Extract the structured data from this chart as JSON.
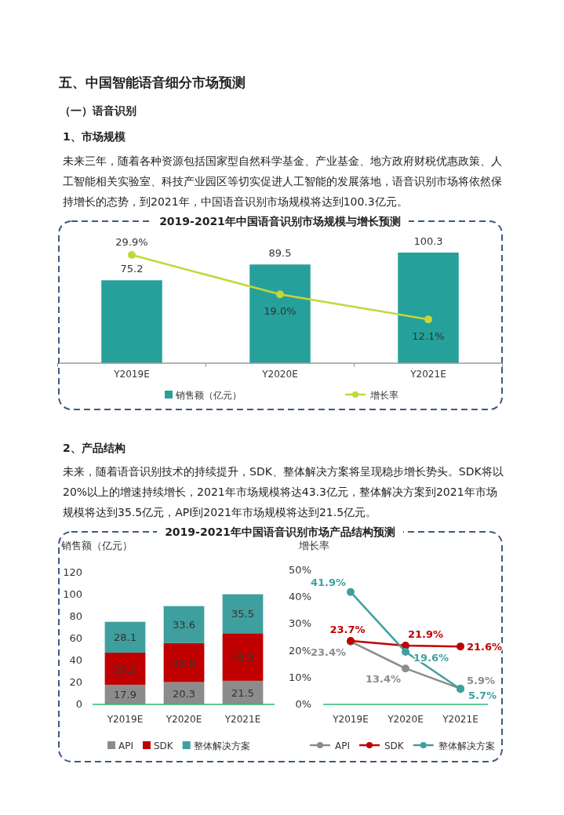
{
  "chart_data": [
    {
      "type": "bar",
      "title": "2019-2021年中国语音识别市场规模与增长预测",
      "annotations": [
        "五、中国智能语音细分市场预测",
        "（一）语音识别",
        "1、市场规模",
        "未来三年，随着各种资源包括国家型自然科学基金、产业基金、地方政府财税优惠政策、人工智能相关实验室、科技产业园区等切实促进人工智能的发展落地，语音识别市场将依然保持增长的态势，到2021年，中国语音识别市场规模将达到100.3亿元。"
      ],
      "categories": [
        "Y2019E",
        "Y2020E",
        "Y2021E"
      ],
      "series": [
        {
          "name": "销售额（亿元）",
          "type": "bar",
          "color": "#26a09a",
          "values": [
            75.2,
            89.5,
            100.3
          ]
        },
        {
          "name": "增长率",
          "type": "line",
          "axis": "y2",
          "color": "#c5d63a",
          "values": [
            29.9,
            19.0,
            12.1
          ],
          "value_labels": [
            "29.9%",
            "19.0%",
            "12.1%"
          ]
        }
      ],
      "data_labels": true,
      "legend": "bottom",
      "marker": "circle"
    },
    {
      "type": "bar",
      "stacked": true,
      "title": "2019-2021年中国语音识别市场产品结构预测",
      "ylabel": "销售额（亿元）",
      "annotations": [
        "2、产品结构",
        "未来，随着语音识别技术的持续提升，SDK、整体解决方案将呈现稳步增长势头。SDK将以20%以上的增速持续增长，2021年市场规模将达43.3亿元，整体解决方案到2021年市场规模将达到35.5亿元，API到2021年市场规模将达到21.5亿元。"
      ],
      "categories": [
        "Y2019E",
        "Y2020E",
        "Y2021E"
      ],
      "series": [
        {
          "name": "API",
          "color": "#8c8c8c",
          "values": [
            17.9,
            20.3,
            21.5
          ]
        },
        {
          "name": "SDK",
          "color": "#c00000",
          "values": [
            29.2,
            35.6,
            43.3
          ]
        },
        {
          "name": "整体解决方案",
          "color": "#3f9f9f",
          "values": [
            28.1,
            33.6,
            35.5
          ]
        }
      ],
      "ylim": [
        0,
        120
      ],
      "yticks": [
        0,
        20,
        40,
        60,
        80,
        100,
        120
      ],
      "data_labels": true,
      "legend": "bottom"
    },
    {
      "type": "line",
      "ylabel": "增长率",
      "categories": [
        "Y2019E",
        "Y2020E",
        "Y2021E"
      ],
      "series": [
        {
          "name": "API",
          "color": "#8c8c8c",
          "values": [
            23.4,
            13.4,
            5.9
          ],
          "value_labels": [
            "23.4%",
            "13.4%",
            "5.9%"
          ]
        },
        {
          "name": "SDK",
          "color": "#c00000",
          "values": [
            23.7,
            21.9,
            21.6
          ],
          "value_labels": [
            "23.7%",
            "21.9%",
            "21.6%"
          ]
        },
        {
          "name": "整体解决方案",
          "color": "#3f9f9f",
          "values": [
            41.9,
            19.6,
            5.7
          ],
          "value_labels": [
            "41.9%",
            "19.6%",
            "5.7%"
          ]
        }
      ],
      "ylim": [
        0,
        50
      ],
      "yticks": [
        {
          "value": 0,
          "label": "0%"
        },
        {
          "value": 10,
          "label": "10%"
        },
        {
          "value": 20,
          "label": "20%"
        },
        {
          "value": 30,
          "label": "30%"
        },
        {
          "value": 40,
          "label": "40%"
        },
        {
          "value": 50,
          "label": "50%"
        }
      ],
      "legend": "bottom",
      "marker": "circle"
    }
  ]
}
